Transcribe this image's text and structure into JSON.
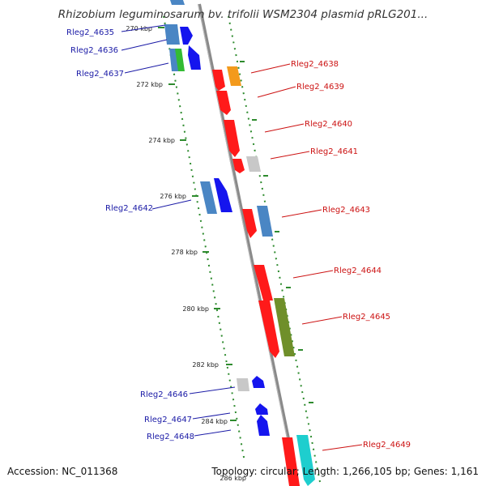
{
  "title": "Rhizobium leguminosarum bv. trifolii WSM2304 plasmid pRLG201...",
  "footer": {
    "accession": "Accession: NC_011368",
    "summary": "Topology: circular; Length: 1,266,105 bp; Genes: 1,161"
  },
  "colors": {
    "backbone": "#8a8a8a",
    "tick_dots": "#2e8b2e",
    "label_left": "#1a1aa6",
    "label_right": "#cc1111",
    "red": "#ff1a1a",
    "orange": "#f39a1c",
    "grey": "#c8c8c8",
    "steelblue": "#4a86c4",
    "blue": "#1515ee",
    "green": "#33bb33",
    "olive": "#6f8f2a",
    "cyan": "#1ecece"
  },
  "scale_ticks": [
    {
      "label": "270 kbp",
      "kbp": 270
    },
    {
      "label": "272 kbp",
      "kbp": 272
    },
    {
      "label": "274 kbp",
      "kbp": 274
    },
    {
      "label": "276 kbp",
      "kbp": 276
    },
    {
      "label": "278 kbp",
      "kbp": 278
    },
    {
      "label": "280 kbp",
      "kbp": 280
    },
    {
      "label": "282 kbp",
      "kbp": 282
    },
    {
      "label": "284 kbp",
      "kbp": 284
    },
    {
      "label": "286 kbp",
      "kbp": 286
    }
  ],
  "genes": [
    {
      "label": "Rleg2_4635",
      "strand": "minus",
      "color": "steelblue"
    },
    {
      "label": "Rleg2_4636",
      "strand": "minus",
      "color": "blue"
    },
    {
      "label": "Rleg2_4637",
      "strand": "minus",
      "color": "green"
    },
    {
      "label": "Rleg2_4638",
      "strand": "plus",
      "color": "orange"
    },
    {
      "label": "Rleg2_4639",
      "strand": "plus",
      "color": "red"
    },
    {
      "label": "Rleg2_4640",
      "strand": "plus",
      "color": "red"
    },
    {
      "label": "Rleg2_4641",
      "strand": "plus",
      "color": "grey"
    },
    {
      "label": "Rleg2_4642",
      "strand": "minus",
      "color": "blue"
    },
    {
      "label": "Rleg2_4643",
      "strand": "plus",
      "color": "steelblue"
    },
    {
      "label": "Rleg2_4644",
      "strand": "plus",
      "color": "red"
    },
    {
      "label": "Rleg2_4645",
      "strand": "plus",
      "color": "olive"
    },
    {
      "label": "Rleg2_4646",
      "strand": "minus",
      "color": "blue"
    },
    {
      "label": "Rleg2_4647",
      "strand": "minus",
      "color": "blue"
    },
    {
      "label": "Rleg2_4648",
      "strand": "minus",
      "color": "blue"
    },
    {
      "label": "Rleg2_4649",
      "strand": "plus",
      "color": "cyan"
    }
  ]
}
